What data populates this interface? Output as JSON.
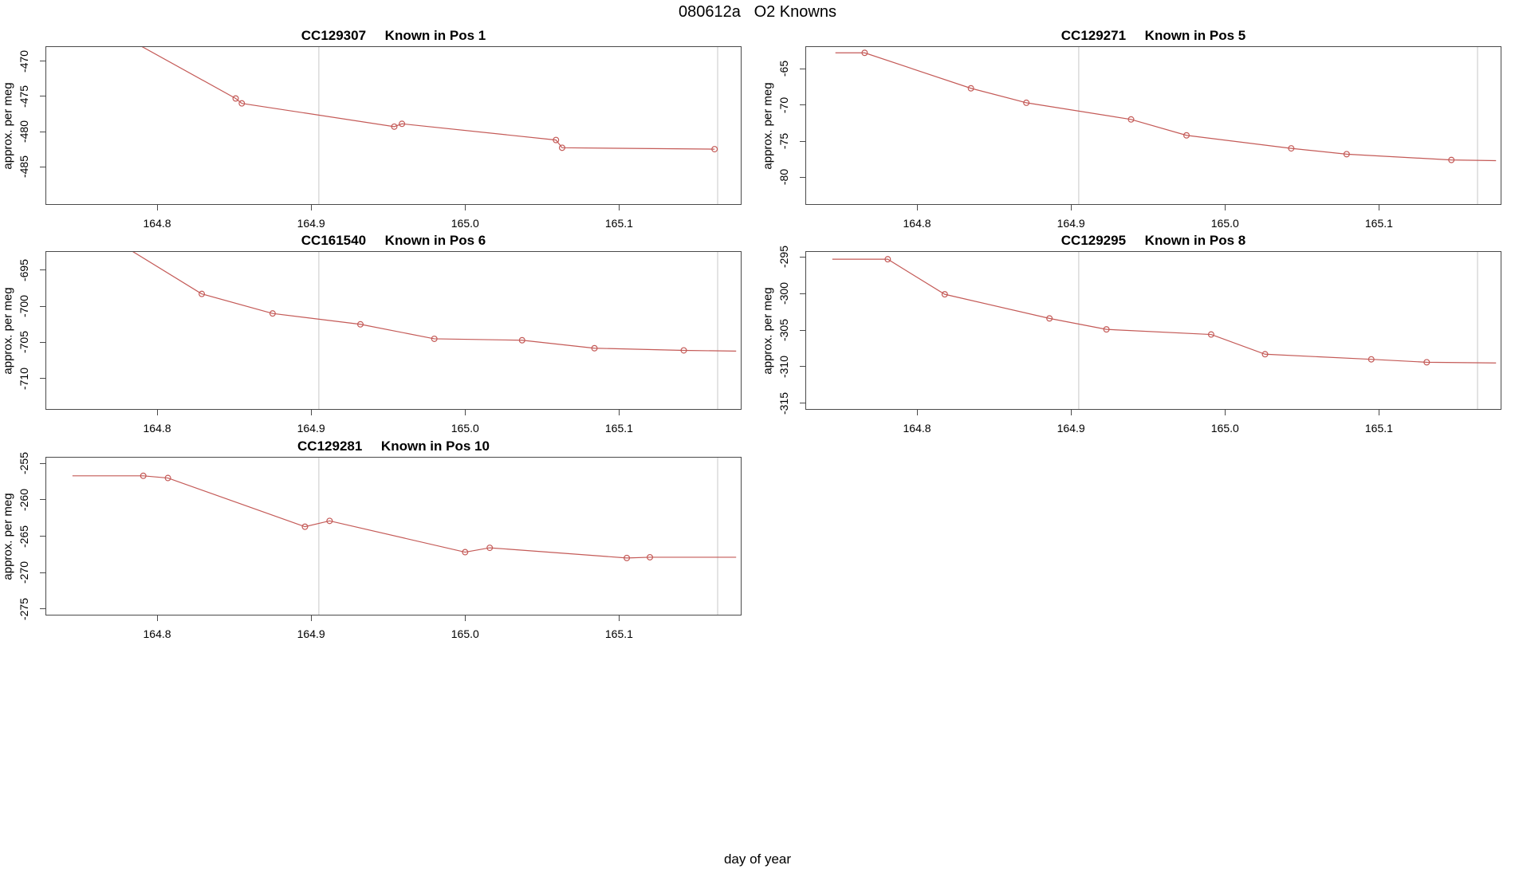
{
  "title": "080612a   O2 Knowns",
  "chart_data": {
    "type": "line",
    "title": "080612a   O2 Knowns",
    "xlabel": "day of year",
    "ylabel": "approx. per meg",
    "xlim": [
      164.728,
      165.179
    ],
    "x_ticks": [
      164.8,
      164.9,
      165.0,
      165.1
    ],
    "x_tick_labels": [
      "164.8",
      "164.9",
      "165.0",
      "165.1"
    ],
    "gridlines_x": [
      164.905,
      165.164
    ],
    "grid": "vertical-reference-lines-only",
    "legend": "none",
    "marker": "open-circle",
    "colors": {
      "line": "#c45a57",
      "marker": "#c45a57",
      "gridline": "#dcdcdc",
      "axis": "#4a4a4a",
      "text": "#000000",
      "background": "#ffffff"
    },
    "panels": [
      {
        "id": "CC129307",
        "title": "CC129307     Known in Pos 1",
        "position_label": "Known in Pos 1",
        "grid": {
          "row": 0,
          "col": 0
        },
        "ylim": [
          -490.3,
          -468.0
        ],
        "y_ticks": [
          -470,
          -475,
          -480,
          -485
        ],
        "line_pre": [
          [
            164.77,
            -465.5
          ]
        ],
        "points": [
          [
            164.851,
            -475.3
          ],
          [
            164.855,
            -476.0
          ],
          [
            164.954,
            -479.3
          ],
          [
            164.959,
            -478.9
          ],
          [
            165.059,
            -481.2
          ],
          [
            165.063,
            -482.3
          ],
          [
            165.162,
            -482.5
          ]
        ],
        "line_post": []
      },
      {
        "id": "CC129271",
        "title": "CC129271     Known in Pos 5",
        "position_label": "Known in Pos 5",
        "grid": {
          "row": 0,
          "col": 1
        },
        "ylim": [
          -83.7,
          -62.0
        ],
        "y_ticks": [
          -65,
          -70,
          -75,
          -80
        ],
        "line_pre": [
          [
            164.747,
            -62.8
          ]
        ],
        "points": [
          [
            164.766,
            -62.8
          ],
          [
            164.835,
            -67.7
          ],
          [
            164.871,
            -69.7
          ],
          [
            164.939,
            -72.0
          ],
          [
            164.975,
            -74.2
          ],
          [
            165.043,
            -76.0
          ],
          [
            165.079,
            -76.8
          ],
          [
            165.147,
            -77.6
          ]
        ],
        "line_post": [
          [
            165.176,
            -77.7
          ]
        ]
      },
      {
        "id": "CC161540",
        "title": "CC161540     Known in Pos 6",
        "position_label": "Known in Pos 6",
        "grid": {
          "row": 1,
          "col": 0
        },
        "ylim": [
          -714.2,
          -692.5
        ],
        "y_ticks": [
          -695,
          -700,
          -705,
          -710
        ],
        "line_pre": [
          [
            164.78,
            -691.9
          ]
        ],
        "points": [
          [
            164.829,
            -698.3
          ],
          [
            164.875,
            -701.0
          ],
          [
            164.932,
            -702.5
          ],
          [
            164.98,
            -704.5
          ],
          [
            165.037,
            -704.7
          ],
          [
            165.084,
            -705.8
          ],
          [
            165.142,
            -706.1
          ]
        ],
        "line_post": [
          [
            165.176,
            -706.2
          ]
        ]
      },
      {
        "id": "CC129295",
        "title": "CC129295     Known in Pos 8",
        "position_label": "Known in Pos 8",
        "grid": {
          "row": 1,
          "col": 1
        },
        "ylim": [
          -315.8,
          -294.3
        ],
        "y_ticks": [
          -295,
          -300,
          -305,
          -310,
          -315
        ],
        "line_pre": [
          [
            164.745,
            -295.3
          ]
        ],
        "points": [
          [
            164.781,
            -295.3
          ],
          [
            164.818,
            -300.1
          ],
          [
            164.886,
            -303.4
          ],
          [
            164.923,
            -304.9
          ],
          [
            164.991,
            -305.6
          ],
          [
            165.026,
            -308.3
          ],
          [
            165.095,
            -309.0
          ],
          [
            165.131,
            -309.4
          ]
        ],
        "line_post": [
          [
            165.176,
            -309.5
          ]
        ]
      },
      {
        "id": "CC129281",
        "title": "CC129281     Known in Pos 10",
        "position_label": "Known in Pos 10",
        "grid": {
          "row": 2,
          "col": 0
        },
        "ylim": [
          -275.8,
          -254.2
        ],
        "y_ticks": [
          -255,
          -260,
          -265,
          -270,
          -275
        ],
        "line_pre": [
          [
            164.745,
            -256.7
          ]
        ],
        "points": [
          [
            164.791,
            -256.7
          ],
          [
            164.807,
            -257.0
          ],
          [
            164.896,
            -263.7
          ],
          [
            164.912,
            -262.9
          ],
          [
            165.0,
            -267.2
          ],
          [
            165.016,
            -266.6
          ],
          [
            165.105,
            -268.0
          ],
          [
            165.12,
            -267.9
          ]
        ],
        "line_post": [
          [
            165.176,
            -267.9
          ]
        ]
      }
    ]
  }
}
